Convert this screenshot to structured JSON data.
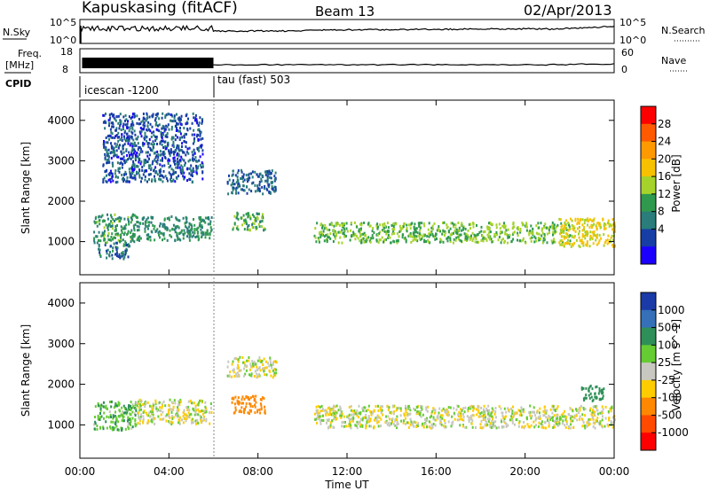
{
  "header": {
    "title": "Kapuskasing (fitACF)",
    "beam": "Beam 13",
    "date": "02/Apr/2013"
  },
  "aux_panels": {
    "nsky_label": "N.Sky",
    "nsearch_label": "N.Search",
    "noise_ticks_left": [
      "10^5",
      "10^0"
    ],
    "noise_ticks_right": [
      "10^5",
      "10^0"
    ],
    "freq_label_1": "Freq.",
    "freq_label_2": "[MHz]",
    "freq_ticks": [
      "18",
      "8"
    ],
    "nave_label": "Nave",
    "nave_ticks": [
      "60",
      "0"
    ],
    "cpid_label": "CPID",
    "cpid_1": "icescan -1200",
    "cpid_2": "tau (fast) 503"
  },
  "chart_data": [
    {
      "type": "heatmap",
      "panel": "power",
      "ylabel": "Slant Range [km]",
      "colorbar_label": "Power [dB]",
      "colorbar_ticks": [
        "28",
        "24",
        "20",
        "16",
        "12",
        "8",
        "4"
      ],
      "colorbar_colors": [
        "#ff0000",
        "#ff5a00",
        "#ff9900",
        "#f7c100",
        "#a6d32b",
        "#2f9a4e",
        "#2a7d7a",
        "#173ea5",
        "#1b00ff"
      ],
      "y_ticks": [
        "4000",
        "3000",
        "2000",
        "1000"
      ],
      "ylim": [
        180,
        4500
      ],
      "regions": [
        {
          "x": [
            0.6,
            2.5
          ],
          "y": [
            1000,
            1700
          ],
          "value": 11
        },
        {
          "x": [
            2.5,
            5.9
          ],
          "y": [
            1050,
            1650
          ],
          "value": 10
        },
        {
          "x": [
            0.8,
            2.2
          ],
          "y": [
            600,
            1000
          ],
          "value": 7
        },
        {
          "x": [
            6.6,
            8.8
          ],
          "y": [
            2200,
            2800
          ],
          "value": 6
        },
        {
          "x": [
            6.8,
            8.3
          ],
          "y": [
            1300,
            1750
          ],
          "value": 13
        },
        {
          "x": [
            10.5,
            22.0
          ],
          "y": [
            1000,
            1500
          ],
          "value": 14
        },
        {
          "x": [
            21.5,
            24.0
          ],
          "y": [
            900,
            1600
          ],
          "value": 18
        },
        {
          "x": [
            1.0,
            5.5
          ],
          "y": [
            2500,
            4200
          ],
          "value": 5
        }
      ]
    },
    {
      "type": "heatmap",
      "panel": "velocity",
      "ylabel": "Slant Range [km]",
      "colorbar_label": "Velocity [m s^-1]",
      "colorbar_ticks": [
        "1000",
        "500",
        "100",
        "25",
        "-25",
        "-100",
        "-500",
        "-1000"
      ],
      "colorbar_colors": [
        "#1a3aa8",
        "#3570b8",
        "#2f8f58",
        "#66cc33",
        "#c8c8c0",
        "#ffcc00",
        "#ff8800",
        "#ff4a00",
        "#ff0000"
      ],
      "y_ticks": [
        "4000",
        "3000",
        "2000",
        "1000"
      ],
      "ylim": [
        180,
        4500
      ],
      "regions": [
        {
          "x": [
            0.6,
            2.5
          ],
          "y": [
            900,
            1600
          ],
          "value": 80
        },
        {
          "x": [
            2.5,
            5.9
          ],
          "y": [
            1050,
            1650
          ],
          "value": 0
        },
        {
          "x": [
            6.6,
            8.8
          ],
          "y": [
            2200,
            2700
          ],
          "value": 0
        },
        {
          "x": [
            6.8,
            8.3
          ],
          "y": [
            1300,
            1750
          ],
          "value": -300
        },
        {
          "x": [
            10.5,
            24.0
          ],
          "y": [
            950,
            1500
          ],
          "value": 0
        },
        {
          "x": [
            22.5,
            23.5
          ],
          "y": [
            1600,
            2000
          ],
          "value": 200
        }
      ]
    }
  ],
  "x_axis": {
    "label": "Time UT",
    "ticks": [
      "00:00",
      "04:00",
      "08:00",
      "12:00",
      "16:00",
      "20:00",
      "00:00"
    ],
    "xlim": [
      0,
      24
    ]
  }
}
